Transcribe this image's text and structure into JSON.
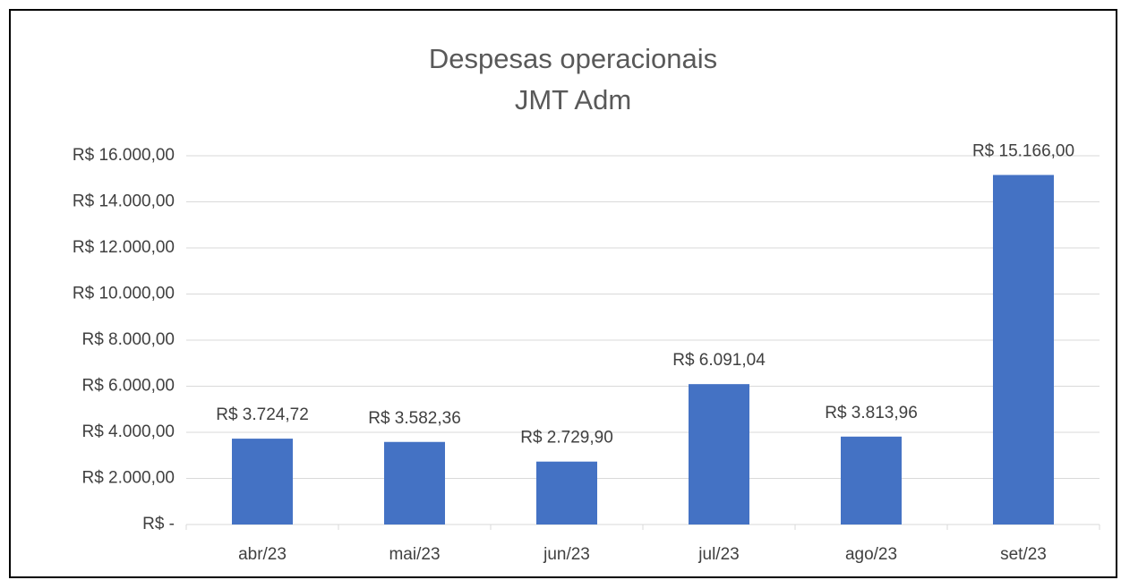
{
  "chart_data": {
    "type": "bar",
    "title": "Despesas operacionais",
    "subtitle": "JMT Adm",
    "categories": [
      "abr/23",
      "mai/23",
      "jun/23",
      "jul/23",
      "ago/23",
      "set/23"
    ],
    "values": [
      3724.72,
      3582.36,
      2729.9,
      6091.04,
      3813.96,
      15166
    ],
    "value_labels": [
      "R$ 3.724,72",
      "R$ 3.582,36",
      "R$ 2.729,90",
      "R$ 6.091,04",
      "R$ 3.813,96",
      "R$ 15.166,00"
    ],
    "color": "#4472c4",
    "ylim": [
      0,
      16000
    ],
    "yticks": [
      {
        "value": 0,
        "label": "R$ -"
      },
      {
        "value": 2000,
        "label": "R$ 2.000,00"
      },
      {
        "value": 4000,
        "label": "R$ 4.000,00"
      },
      {
        "value": 6000,
        "label": "R$ 6.000,00"
      },
      {
        "value": 8000,
        "label": "R$ 8.000,00"
      },
      {
        "value": 10000,
        "label": "R$ 10.000,00"
      },
      {
        "value": 12000,
        "label": "R$ 12.000,00"
      },
      {
        "value": 14000,
        "label": "R$ 14.000,00"
      },
      {
        "value": 16000,
        "label": "R$ 16.000,00"
      }
    ],
    "grid": true
  }
}
